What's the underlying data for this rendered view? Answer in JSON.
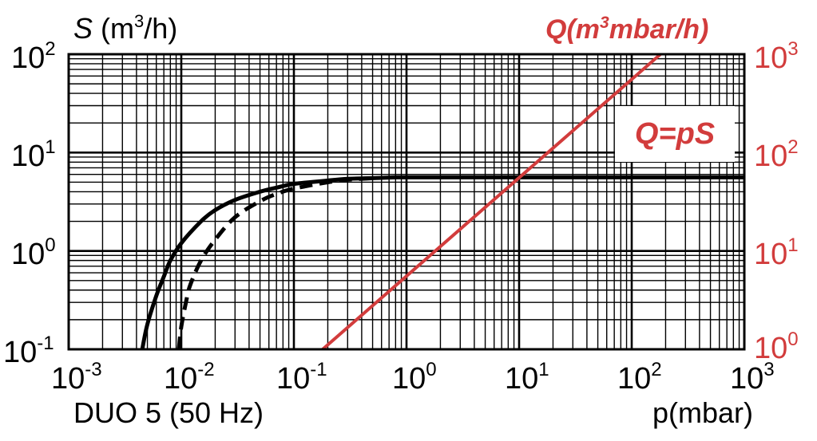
{
  "chart_data": {
    "type": "line",
    "scale": {
      "x": "log",
      "y_left": "log",
      "y_right": "log"
    },
    "grid": true,
    "xlim": [
      0.001,
      1000
    ],
    "ylim_left": [
      0.1,
      100
    ],
    "ylim_right": [
      1,
      1000
    ],
    "x_ticks": [
      {
        "base": "10",
        "exp": "-3"
      },
      {
        "base": "10",
        "exp": "-2"
      },
      {
        "base": "10",
        "exp": "-1"
      },
      {
        "base": "10",
        "exp": "0"
      },
      {
        "base": "10",
        "exp": "1"
      },
      {
        "base": "10",
        "exp": "2"
      },
      {
        "base": "10",
        "exp": "3"
      }
    ],
    "y_left_ticks": [
      {
        "base": "10",
        "exp": "2"
      },
      {
        "base": "10",
        "exp": "1"
      },
      {
        "base": "10",
        "exp": "0"
      },
      {
        "base": "10",
        "exp": "-1"
      }
    ],
    "y_right_ticks": [
      {
        "base": "10",
        "exp": "3"
      },
      {
        "base": "10",
        "exp": "2"
      },
      {
        "base": "10",
        "exp": "1"
      },
      {
        "base": "10",
        "exp": "0"
      }
    ],
    "ylabel_left": {
      "symbol": "S",
      "unit_pre": " (m",
      "unit_sup": "3",
      "unit_post": "/h)"
    },
    "ylabel_right": {
      "pre": "Q(m",
      "sup": "3",
      "post": "mbar/h)"
    },
    "xlabel": "p(mbar)",
    "footer_label": "DUO 5 (50 Hz)",
    "annotation": "Q=pS",
    "colors": {
      "curves": "#000000",
      "q_line": "#d23c3c",
      "grid": "#000000"
    },
    "series": [
      {
        "style": "solid",
        "axis": "left",
        "x": [
          0.0045,
          0.005,
          0.006,
          0.007,
          0.008,
          0.01,
          0.015,
          0.02,
          0.03,
          0.05,
          0.07,
          0.1,
          0.2,
          0.3,
          0.5,
          0.8,
          1,
          2,
          10,
          100,
          1000
        ],
        "y": [
          0.1,
          0.18,
          0.35,
          0.55,
          0.8,
          1.2,
          2.0,
          2.6,
          3.3,
          4.0,
          4.4,
          4.8,
          5.2,
          5.4,
          5.5,
          5.6,
          5.6,
          5.6,
          5.6,
          5.6,
          5.6
        ]
      },
      {
        "style": "dashed",
        "axis": "left",
        "x": [
          0.0095,
          0.01,
          0.011,
          0.012,
          0.015,
          0.02,
          0.03,
          0.05,
          0.07,
          0.1,
          0.2,
          0.3,
          0.5
        ],
        "y": [
          0.1,
          0.17,
          0.3,
          0.45,
          0.8,
          1.3,
          2.2,
          3.2,
          3.8,
          4.3,
          5.0,
          5.3,
          5.5
        ]
      },
      {
        "style": "solid",
        "axis": "right",
        "x": [
          0.18,
          180
        ],
        "y": [
          1,
          1000
        ]
      }
    ]
  }
}
